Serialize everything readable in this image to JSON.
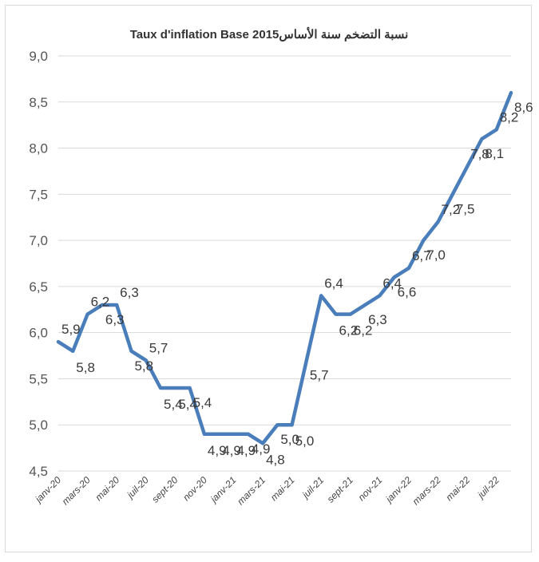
{
  "chart_data": {
    "type": "line",
    "title": "Taux d'inflation Base 2015نسبة التضخم سنة الأساس",
    "xlabel": "",
    "ylabel": "",
    "ylim": [
      4.5,
      9.0
    ],
    "yticks": [
      "9,0",
      "8,5",
      "8,0",
      "7,5",
      "7,0",
      "6,5",
      "6,0",
      "5,5",
      "5,0",
      "4,5"
    ],
    "ytick_values": [
      9.0,
      8.5,
      8.0,
      7.5,
      7.0,
      6.5,
      6.0,
      5.5,
      5.0,
      4.5
    ],
    "x_tick_labels": [
      "janv-20",
      "mars-20",
      "mai-20",
      "juil-20",
      "sept-20",
      "nov-20",
      "janv-21",
      "mars-21",
      "mai-21",
      "juil-21",
      "sept-21",
      "nov-21",
      "janv-22",
      "mars-22",
      "mai-22",
      "juil-22"
    ],
    "x": [
      "janv-20",
      "févr-20",
      "mars-20",
      "avr-20",
      "mai-20",
      "juin-20",
      "juil-20",
      "août-20",
      "sept-20",
      "oct-20",
      "nov-20",
      "déc-20",
      "janv-21",
      "févr-21",
      "mars-21",
      "avr-21",
      "mai-21",
      "juin-21",
      "juil-21",
      "août-21",
      "sept-21",
      "oct-21",
      "nov-21",
      "déc-21",
      "janv-22",
      "févr-22",
      "mars-22",
      "avr-22",
      "mai-22",
      "juin-22",
      "juil-22",
      "août-22"
    ],
    "series": [
      {
        "values": [
          5.9,
          5.8,
          6.2,
          6.3,
          6.3,
          5.8,
          5.7,
          5.4,
          5.4,
          5.4,
          4.9,
          4.9,
          4.9,
          4.9,
          4.8,
          5.0,
          5.0,
          5.7,
          6.4,
          6.2,
          6.2,
          6.3,
          6.4,
          6.6,
          6.7,
          7.0,
          7.2,
          7.5,
          7.8,
          8.1,
          8.2,
          8.6
        ],
        "data_labels": [
          "5,9",
          "5,8",
          "6,2",
          "6,3",
          "6,3",
          "5,8",
          "5,7",
          "5,4",
          "5,4",
          "5,4",
          "4,9",
          "4,9",
          "4,9",
          "4,9",
          "4,8",
          "5,0",
          "5,0",
          "5,7",
          "6,4",
          "6,2",
          "6,2",
          "6,3",
          "6,4",
          "6,6",
          "6,7",
          "7,0",
          "7,2",
          "7,5",
          "7,8",
          "8,1",
          "8,2",
          "8,6"
        ],
        "color": "#4a7ebb"
      }
    ],
    "grid": true,
    "legend": "none"
  }
}
